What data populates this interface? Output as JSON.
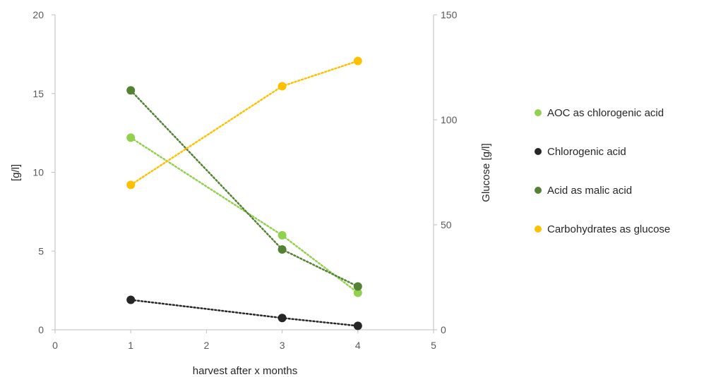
{
  "chart_data": {
    "type": "scatter",
    "xlabel": "harvest after x months",
    "ylabel": "[g/l]",
    "y2label": "Glucose [g/l]",
    "xlim": [
      0,
      5
    ],
    "xticks": [
      0,
      1,
      2,
      3,
      4,
      5
    ],
    "ylim": [
      0,
      20
    ],
    "yticks": [
      0,
      5,
      10,
      15,
      20
    ],
    "y2lim": [
      0,
      150
    ],
    "y2ticks": [
      0,
      50,
      100,
      150
    ],
    "grid": false,
    "legend_position": "right",
    "series": [
      {
        "name": "AOC as chlorogenic acid",
        "color": "#92d050",
        "axis": "left",
        "x": [
          1,
          3,
          4
        ],
        "y": [
          12.2,
          6.0,
          2.35
        ]
      },
      {
        "name": "Chlorogenic acid",
        "color": "#262626",
        "axis": "left",
        "x": [
          1,
          3,
          4
        ],
        "y": [
          1.9,
          0.75,
          0.25
        ]
      },
      {
        "name": "Acid as malic acid",
        "color": "#548235",
        "axis": "left",
        "x": [
          1,
          3,
          4
        ],
        "y": [
          15.2,
          5.1,
          2.75
        ]
      },
      {
        "name": "Carbohydrates as glucose",
        "color": "#ffc000",
        "axis": "right",
        "x": [
          1,
          3,
          4
        ],
        "y": [
          69,
          116,
          128
        ]
      }
    ]
  }
}
